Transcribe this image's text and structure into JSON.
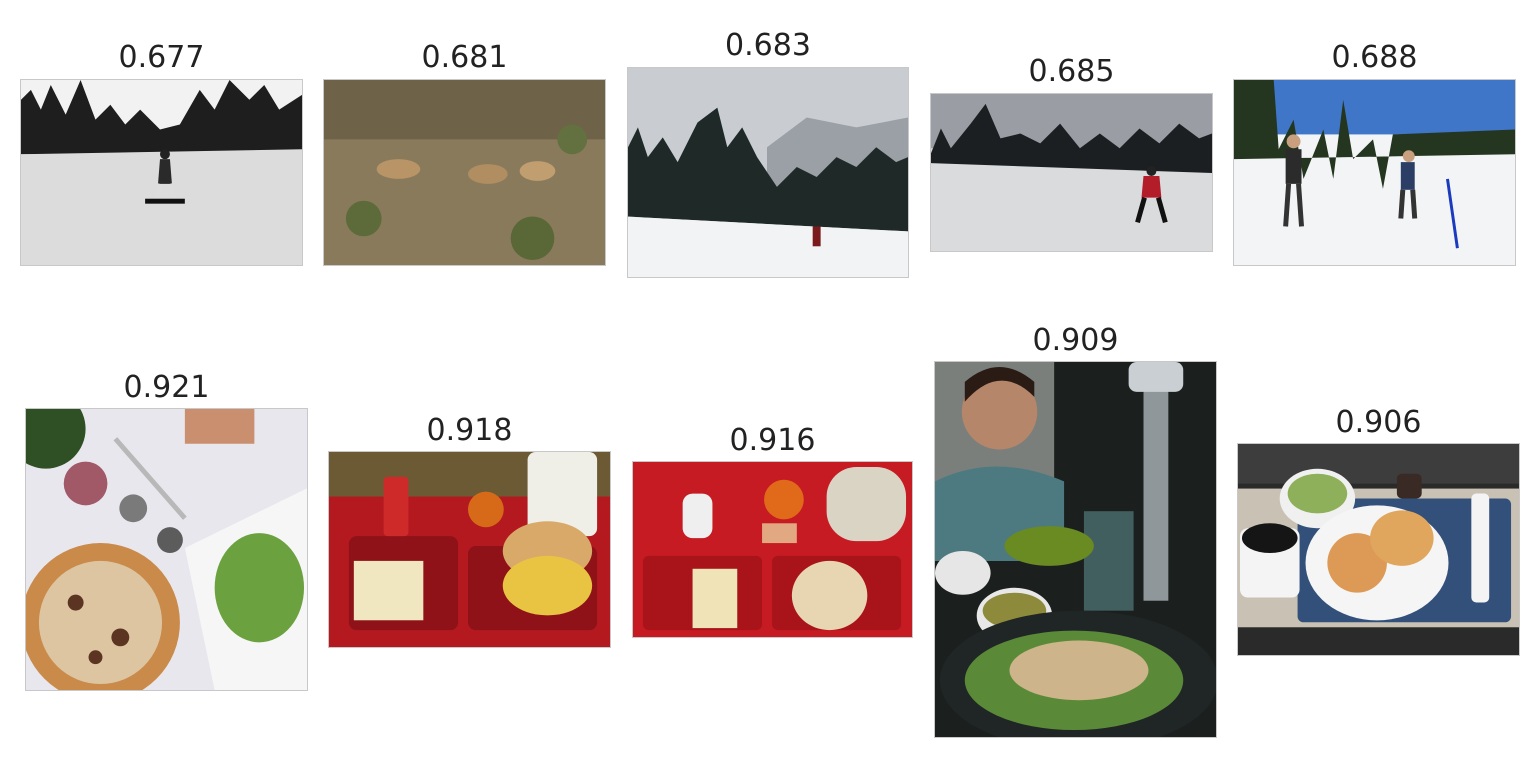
{
  "rows": [
    {
      "label": "snow-row",
      "items": [
        {
          "score": "0.677",
          "subject": "snowboarder-on-slope"
        },
        {
          "score": "0.681",
          "subject": "bighorn-sheep-on-hillside"
        },
        {
          "score": "0.683",
          "subject": "skier-below-forested-mountain"
        },
        {
          "score": "0.685",
          "subject": "cross-country-skier"
        },
        {
          "score": "0.688",
          "subject": "two-skiers-in-snowfield"
        }
      ]
    },
    {
      "label": "food-row",
      "items": [
        {
          "score": "0.921",
          "subject": "pizza-and-salad-table"
        },
        {
          "score": "0.918",
          "subject": "red-lunch-tray"
        },
        {
          "score": "0.916",
          "subject": "red-lunch-tray-2"
        },
        {
          "score": "0.909",
          "subject": "man-eating-salad"
        },
        {
          "score": "0.906",
          "subject": "airline-meal-tray"
        }
      ]
    }
  ]
}
